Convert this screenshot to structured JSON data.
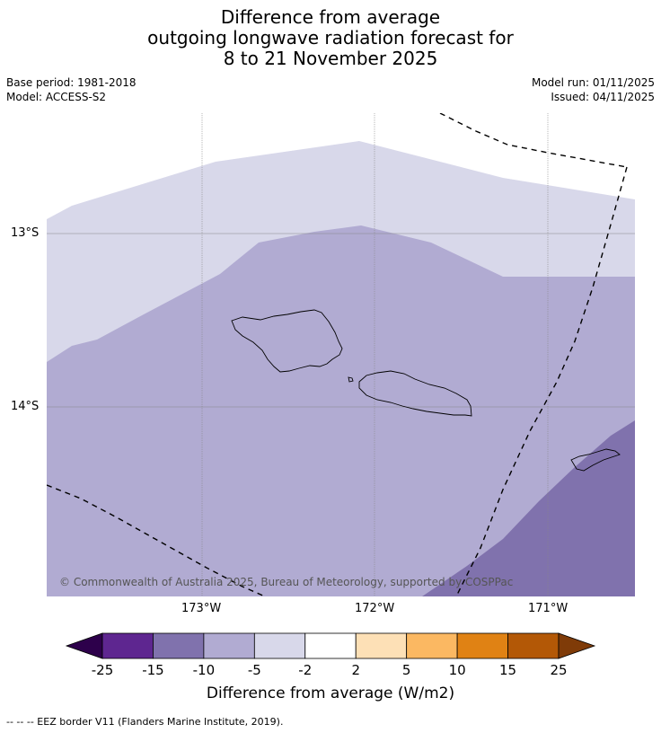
{
  "title": {
    "line1": "Difference from average",
    "line2": "outgoing longwave radiation forecast for",
    "line3": "8 to 21 November 2025"
  },
  "meta": {
    "base_period": "Base period: 1981-2018",
    "model": "Model: ACCESS-S2",
    "model_run": "Model run: 01/11/2025",
    "issued": "Issued: 04/11/2025"
  },
  "map": {
    "lat_labels": [
      "13°S",
      "14°S"
    ],
    "lon_labels": [
      "173°W",
      "172°W",
      "171°W"
    ],
    "copyright": "© Commonwealth of Australia 2025, Bureau of Meteorology, supported by COSPPac",
    "shade_colors": {
      "-5 to -2": "#d8d8ea",
      "-10 to -5": "#b1abd2",
      "-15 to -10": "#8072ad"
    }
  },
  "colorbar": {
    "ticks": [
      "-25",
      "-15",
      "-10",
      "-5",
      "-2",
      "2",
      "5",
      "10",
      "15",
      "25"
    ],
    "colors": [
      "#5e2690",
      "#8072ad",
      "#b1abd2",
      "#d8d8ea",
      "#ffffff",
      "#fde0b6",
      "#fbb862",
      "#e08214",
      "#b35806"
    ],
    "under_color": "#2d004b",
    "over_color": "#7f3b08",
    "label": "Difference from average (W/m2)"
  },
  "footer": {
    "legend": "--  --  -- EEZ border V11 (Flanders Marine Institute, 2019)."
  }
}
